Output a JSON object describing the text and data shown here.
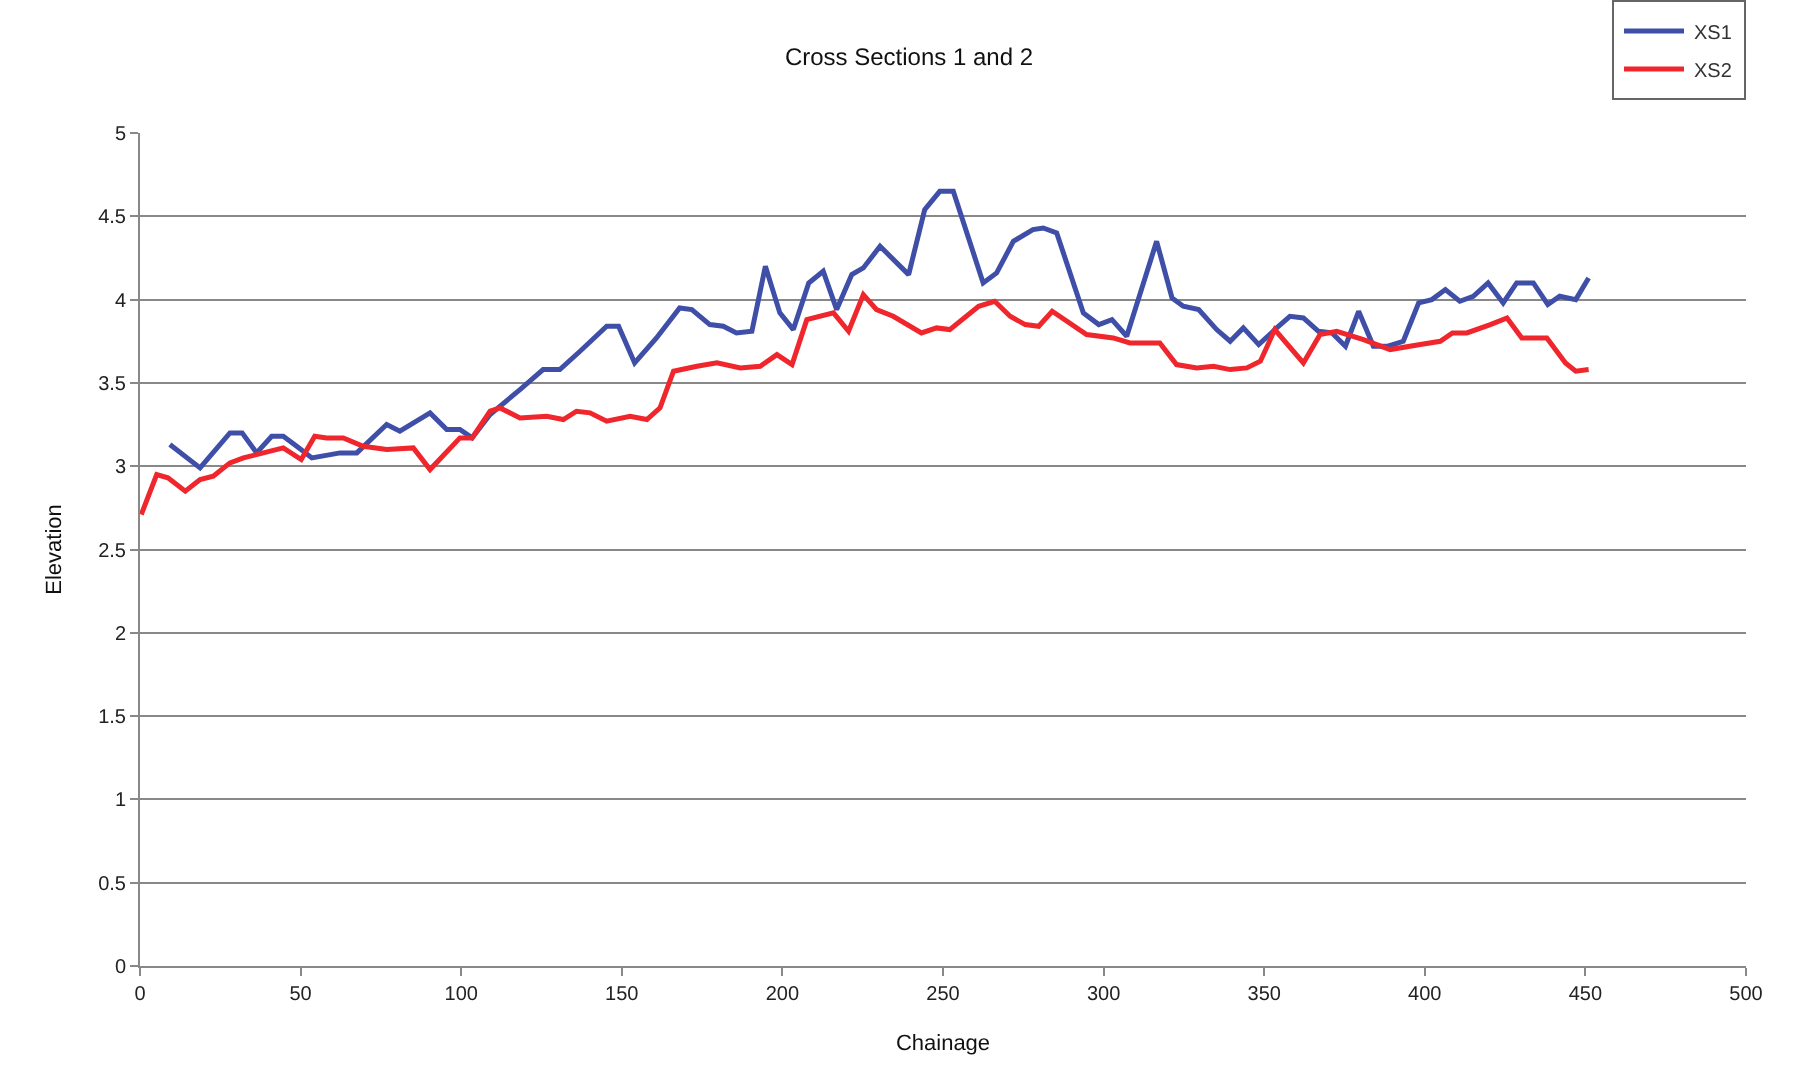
{
  "chart_data": {
    "type": "line",
    "title": "Cross Sections 1 and 2",
    "xlabel": "Chainage",
    "ylabel": "Elevation",
    "xlim": [
      0,
      500
    ],
    "xticks": [
      0,
      50,
      100,
      150,
      200,
      250,
      300,
      350,
      400,
      450,
      500
    ],
    "ylim": [
      0,
      5
    ],
    "yticks": [
      0,
      0.5,
      1,
      1.5,
      2,
      2.5,
      3,
      3.5,
      4,
      4.5,
      5
    ],
    "grid": "y",
    "legend": "top right",
    "marker": "none",
    "line_style": "solid",
    "series": [
      {
        "name": "XS1",
        "color": "#3f4fa8",
        "x": [
          9.3,
          18.7,
          28,
          31.8,
          36.3,
          41,
          44.6,
          48.8,
          53.5,
          62.3,
          67.5,
          76.8,
          80.9,
          90.3,
          95.5,
          99.6,
          103.4,
          109,
          118.3,
          125.5,
          130.7,
          137,
          145.3,
          149,
          154,
          160.8,
          168,
          171.8,
          177.4,
          181.6,
          185.7,
          190.5,
          194.7,
          199.2,
          203.4,
          208.2,
          212.7,
          216.9,
          221.6,
          225.2,
          230.4,
          239.3,
          244.3,
          249,
          253.2,
          262.5,
          266.7,
          271.9,
          278,
          281.2,
          285.4,
          293.7,
          298.5,
          302.6,
          307.2,
          316.5,
          321.3,
          324.8,
          329.6,
          335.2,
          339.4,
          343.5,
          348.3,
          353.9,
          358,
          362.2,
          366.9,
          371.1,
          375.3,
          379.4,
          384,
          388.5,
          393.3,
          398.1,
          402.2,
          406.4,
          410.9,
          415.1,
          419.7,
          424.4,
          428.6,
          433.8,
          438.3,
          442,
          447,
          451
        ],
        "values": [
          3.13,
          2.99,
          3.2,
          3.2,
          3.08,
          3.18,
          3.18,
          3.12,
          3.05,
          3.08,
          3.08,
          3.25,
          3.21,
          3.32,
          3.22,
          3.22,
          3.17,
          3.31,
          3.46,
          3.58,
          3.58,
          3.69,
          3.84,
          3.84,
          3.62,
          3.77,
          3.95,
          3.94,
          3.85,
          3.84,
          3.8,
          3.81,
          4.2,
          3.92,
          3.82,
          4.1,
          4.17,
          3.94,
          4.15,
          4.19,
          4.32,
          4.15,
          4.54,
          4.65,
          4.65,
          4.1,
          4.16,
          4.35,
          4.42,
          4.43,
          4.4,
          3.92,
          3.85,
          3.88,
          3.78,
          4.35,
          4.01,
          3.96,
          3.94,
          3.82,
          3.75,
          3.83,
          3.73,
          3.83,
          3.9,
          3.89,
          3.81,
          3.8,
          3.72,
          3.93,
          3.72,
          3.72,
          3.75,
          3.98,
          4.0,
          4.06,
          3.99,
          4.02,
          4.1,
          3.98,
          4.1,
          4.1,
          3.97,
          4.02,
          4.0,
          4.13
        ]
      },
      {
        "name": "XS2",
        "color": "#f0262d",
        "x": [
          0.4,
          5.2,
          8.7,
          14.1,
          18.7,
          22.8,
          28,
          32.2,
          38.4,
          44.6,
          50.2,
          54.4,
          58.1,
          63.3,
          69.5,
          76.8,
          85.1,
          90.3,
          99.6,
          103.4,
          109,
          112.1,
          118.3,
          126.6,
          131.8,
          135.9,
          140.1,
          145.3,
          152.6,
          157.8,
          161.9,
          166.1,
          173.4,
          179.6,
          186.9,
          193.1,
          198.3,
          203,
          207.6,
          215.9,
          220.6,
          225.2,
          229.3,
          234.5,
          243.3,
          248,
          252.1,
          261.1,
          266.1,
          270.9,
          275.6,
          279.8,
          284,
          294.7,
          303,
          308.2,
          317.5,
          322.7,
          329,
          334.2,
          339.4,
          344.6,
          348.8,
          353.3,
          362.2,
          367.4,
          372.6,
          380.9,
          389.2,
          398.6,
          404.8,
          408.6,
          413.1,
          420.4,
          425.6,
          430.2,
          438,
          443.8,
          447,
          451
        ],
        "values": [
          2.71,
          2.95,
          2.93,
          2.85,
          2.92,
          2.94,
          3.02,
          3.05,
          3.08,
          3.11,
          3.04,
          3.18,
          3.17,
          3.17,
          3.12,
          3.1,
          3.11,
          2.98,
          3.17,
          3.17,
          3.33,
          3.35,
          3.29,
          3.3,
          3.28,
          3.33,
          3.32,
          3.27,
          3.3,
          3.28,
          3.35,
          3.57,
          3.6,
          3.62,
          3.59,
          3.6,
          3.67,
          3.61,
          3.88,
          3.92,
          3.81,
          4.03,
          3.94,
          3.9,
          3.8,
          3.83,
          3.82,
          3.96,
          3.99,
          3.9,
          3.85,
          3.84,
          3.93,
          3.79,
          3.77,
          3.74,
          3.74,
          3.61,
          3.59,
          3.6,
          3.58,
          3.59,
          3.63,
          3.82,
          3.62,
          3.79,
          3.81,
          3.76,
          3.7,
          3.73,
          3.75,
          3.8,
          3.8,
          3.85,
          3.89,
          3.77,
          3.77,
          3.62,
          3.57,
          3.58
        ]
      }
    ]
  }
}
